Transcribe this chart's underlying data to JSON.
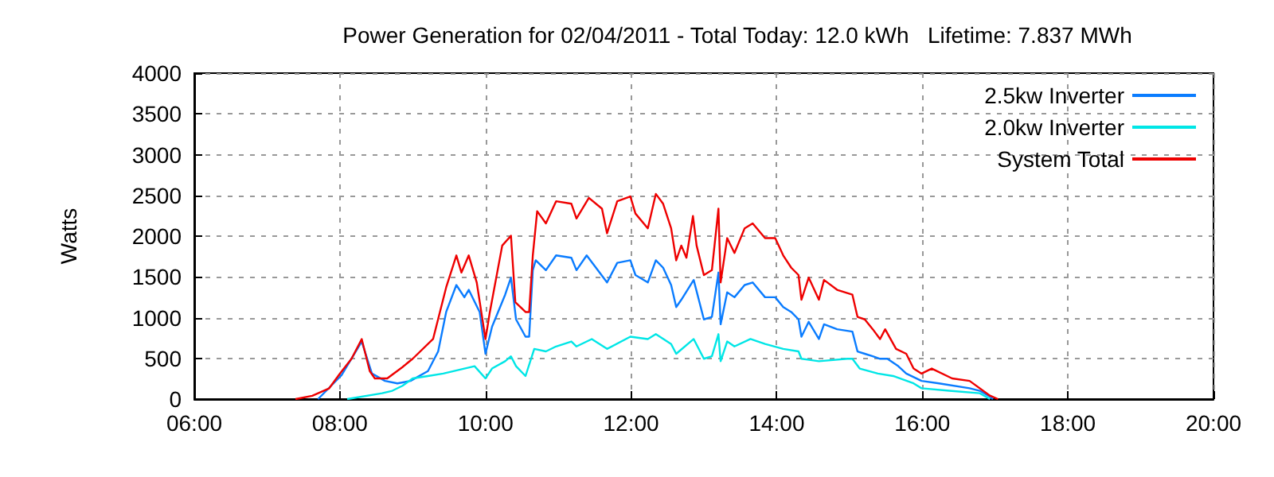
{
  "chart_data": {
    "type": "line",
    "title": "Power Generation for 02/04/2011 - Total Today: 12.0 kWh   Lifetime: 7.837 MWh",
    "ylabel": "Watts",
    "xlim": [
      6,
      20
    ],
    "xticks": [
      {
        "value": 6,
        "label": "06:00"
      },
      {
        "value": 8,
        "label": "08:00"
      },
      {
        "value": 10,
        "label": "10:00"
      },
      {
        "value": 12,
        "label": "12:00"
      },
      {
        "value": 14,
        "label": "14:00"
      },
      {
        "value": 16,
        "label": "16:00"
      },
      {
        "value": 18,
        "label": "18:00"
      },
      {
        "value": 20,
        "label": "20:00"
      }
    ],
    "ylim": [
      0,
      4000
    ],
    "yticks": [
      0,
      500,
      1000,
      1500,
      2000,
      2500,
      3000,
      3500,
      4000
    ],
    "grid": true,
    "legend": "top right",
    "marker": "none",
    "line_style": "solid",
    "series": [
      {
        "name": "2.5kw Inverter",
        "color": "#0a7cff",
        "x": [
          7.7,
          8.02,
          8.3,
          8.44,
          8.62,
          8.79,
          8.97,
          9.21,
          9.35,
          9.46,
          9.6,
          9.71,
          9.77,
          9.92,
          10.0,
          10.09,
          10.27,
          10.35,
          10.42,
          10.55,
          10.6,
          10.65,
          10.69,
          10.83,
          10.97,
          11.18,
          11.25,
          11.39,
          11.67,
          11.81,
          11.99,
          12.06,
          12.23,
          12.34,
          12.44,
          12.55,
          12.62,
          12.69,
          12.86,
          13.0,
          13.11,
          13.2,
          13.23,
          13.32,
          13.42,
          13.56,
          13.67,
          13.84,
          13.98,
          14.09,
          14.2,
          14.3,
          14.34,
          14.44,
          14.58,
          14.65,
          14.83,
          15.04,
          15.11,
          15.21,
          15.32,
          15.42,
          15.52,
          15.67,
          15.78,
          15.99,
          16.23,
          16.65,
          16.79,
          16.93,
          16.97
        ],
        "values": [
          0,
          290,
          707,
          313,
          223,
          193,
          223,
          344,
          585,
          1069,
          1400,
          1250,
          1341,
          1069,
          556,
          888,
          1281,
          1491,
          978,
          766,
          766,
          1582,
          1703,
          1582,
          1763,
          1734,
          1582,
          1763,
          1431,
          1672,
          1703,
          1522,
          1431,
          1703,
          1612,
          1400,
          1129,
          1219,
          1462,
          978,
          1009,
          1553,
          918,
          1310,
          1250,
          1400,
          1431,
          1250,
          1250,
          1129,
          1069,
          978,
          766,
          948,
          737,
          918,
          857,
          828,
          585,
          556,
          525,
          495,
          495,
          404,
          313,
          223,
          193,
          133,
          102,
          30,
          0
        ]
      },
      {
        "name": "2.0kw Inverter",
        "color": "#00e6e6",
        "x": [
          8.1,
          8.58,
          8.72,
          8.86,
          9.0,
          9.21,
          9.42,
          9.71,
          9.85,
          10.0,
          10.09,
          10.27,
          10.35,
          10.42,
          10.55,
          10.67,
          10.83,
          10.97,
          11.18,
          11.25,
          11.46,
          11.67,
          11.99,
          12.23,
          12.34,
          12.55,
          12.62,
          12.86,
          13.0,
          13.11,
          13.2,
          13.23,
          13.32,
          13.42,
          13.64,
          13.84,
          14.09,
          14.3,
          14.34,
          14.58,
          14.97,
          15.04,
          15.14,
          15.39,
          15.6,
          15.88,
          15.99,
          16.37,
          16.79,
          16.93
        ],
        "values": [
          0,
          72,
          102,
          163,
          254,
          283,
          313,
          375,
          404,
          254,
          375,
          465,
          525,
          404,
          283,
          616,
          585,
          646,
          707,
          646,
          737,
          616,
          766,
          737,
          797,
          676,
          556,
          737,
          495,
          525,
          797,
          465,
          707,
          646,
          737,
          676,
          616,
          585,
          495,
          465,
          495,
          495,
          375,
          313,
          283,
          193,
          133,
          102,
          72,
          0
        ]
      },
      {
        "name": "System Total",
        "color": "#ee0000",
        "x": [
          7.39,
          7.62,
          7.85,
          8.0,
          8.16,
          8.3,
          8.41,
          8.48,
          8.65,
          8.86,
          9.0,
          9.28,
          9.46,
          9.6,
          9.67,
          9.77,
          9.88,
          10.0,
          10.06,
          10.23,
          10.35,
          10.41,
          10.55,
          10.6,
          10.65,
          10.71,
          10.83,
          10.97,
          11.18,
          11.25,
          11.42,
          11.6,
          11.67,
          11.81,
          11.99,
          12.06,
          12.23,
          12.34,
          12.44,
          12.55,
          12.62,
          12.69,
          12.76,
          12.85,
          12.9,
          13.0,
          13.11,
          13.2,
          13.23,
          13.32,
          13.42,
          13.56,
          13.67,
          13.84,
          13.98,
          14.09,
          14.2,
          14.3,
          14.34,
          14.44,
          14.58,
          14.65,
          14.83,
          15.04,
          15.11,
          15.21,
          15.32,
          15.42,
          15.49,
          15.64,
          15.78,
          15.88,
          15.99,
          16.13,
          16.41,
          16.65,
          16.93,
          17.04
        ],
        "values": [
          0,
          40,
          130,
          313,
          495,
          737,
          344,
          254,
          254,
          393,
          495,
          737,
          1371,
          1763,
          1553,
          1763,
          1431,
          737,
          1069,
          1884,
          2005,
          1190,
          1069,
          1069,
          1763,
          2306,
          2156,
          2428,
          2397,
          2216,
          2469,
          2337,
          2035,
          2428,
          2487,
          2277,
          2096,
          2518,
          2397,
          2096,
          1703,
          1884,
          1734,
          2246,
          1884,
          1522,
          1582,
          2337,
          1431,
          1975,
          1793,
          2096,
          2156,
          1975,
          1975,
          1763,
          1612,
          1522,
          1219,
          1491,
          1219,
          1462,
          1341,
          1281,
          1009,
          978,
          857,
          737,
          857,
          616,
          556,
          375,
          313,
          375,
          254,
          223,
          42,
          0
        ]
      }
    ]
  }
}
